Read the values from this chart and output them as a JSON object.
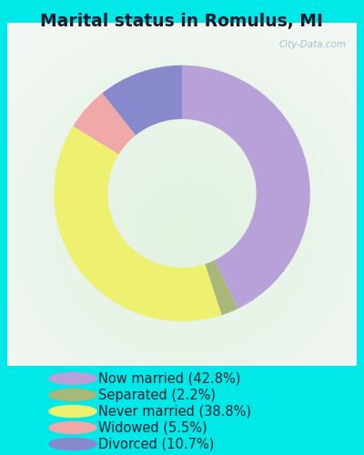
{
  "title": "Marital status in Romulus, MI",
  "slices": [
    42.8,
    2.2,
    38.8,
    5.5,
    10.7
  ],
  "labels": [
    "Now married (42.8%)",
    "Separated (2.2%)",
    "Never married (38.8%)",
    "Widowed (5.5%)",
    "Divorced (10.7%)"
  ],
  "colors": [
    "#b8a0d8",
    "#a8b878",
    "#eef070",
    "#f0a8a8",
    "#8888cc"
  ],
  "bg_outer": "#00e8e8",
  "watermark": "City-Data.com",
  "legend_font_size": 10.5,
  "title_font_size": 13.5,
  "startangle": 90
}
